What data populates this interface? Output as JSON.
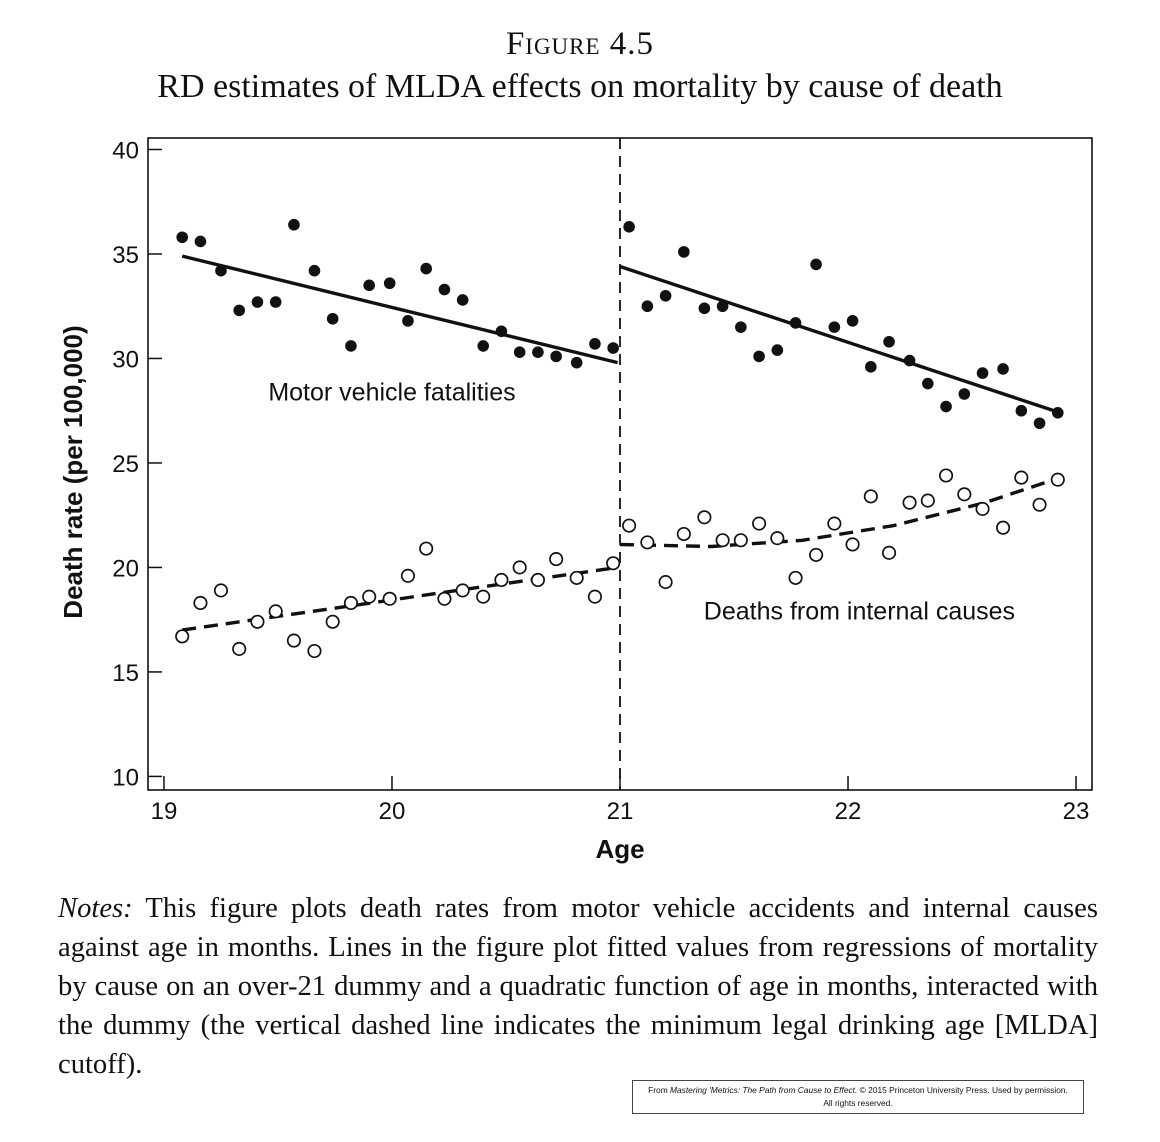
{
  "figure": {
    "label": "Figure 4.5",
    "title": "RD estimates of MLDA effects on mortality by cause of death"
  },
  "notes": {
    "lead": "Notes:",
    "text": "This figure plots death rates from motor vehicle accidents and inter­nal causes against age in months. Lines in the figure plot fitted values from regressions of mortality by cause on an over-21 dummy and a quadratic func­tion of age in months, interacted with the dummy (the vertical dashed line indicates the minimum legal drinking age [MLDA] cutoff)."
  },
  "credit": {
    "prefix": "From",
    "book": "Mastering 'Metrics: The Path from Cause to Effect.",
    "suffix": "© 2015 Princeton University Press. Used by permission.",
    "line2": "All rights reserved."
  },
  "chart_data": {
    "type": "scatter",
    "xlabel": "Age",
    "ylabel": "Death rate (per 100,000)",
    "xlim": [
      18.93,
      23.07
    ],
    "ylim": [
      9.35,
      40.55
    ],
    "xticks": [
      19,
      20,
      21,
      22,
      23
    ],
    "yticks": [
      10,
      15,
      20,
      25,
      30,
      35,
      40
    ],
    "grid": false,
    "cutoff": {
      "x": 21,
      "style": "dashed"
    },
    "annotations": [
      {
        "text": "Motor vehicle fatalities",
        "x": 20.0,
        "y": 28.0
      },
      {
        "text": "Deaths from internal causes",
        "x": 22.05,
        "y": 17.5
      }
    ],
    "series": [
      {
        "marker": "filled-circle",
        "color": "#111111",
        "x": [
          19.08,
          19.16,
          19.25,
          19.33,
          19.41,
          19.49,
          19.57,
          19.66,
          19.74,
          19.82,
          19.9,
          19.99,
          20.07,
          20.15,
          20.23,
          20.31,
          20.4,
          20.48,
          20.56,
          20.64,
          20.72,
          20.81,
          20.89,
          20.97,
          21.04,
          21.12,
          21.2,
          21.28,
          21.37,
          21.45,
          21.53,
          21.61,
          21.69,
          21.77,
          21.86,
          21.94,
          22.02,
          22.1,
          22.18,
          22.27,
          22.35,
          22.43,
          22.51,
          22.59,
          22.68,
          22.76,
          22.84,
          22.92
        ],
        "y": [
          35.8,
          35.6,
          34.2,
          32.3,
          32.7,
          32.7,
          36.4,
          34.2,
          31.9,
          30.6,
          33.5,
          33.6,
          31.8,
          34.3,
          33.3,
          32.8,
          30.6,
          31.3,
          30.3,
          30.3,
          30.1,
          29.8,
          30.7,
          30.5,
          36.3,
          32.5,
          33.0,
          35.1,
          32.4,
          32.5,
          31.5,
          30.1,
          30.4,
          31.7,
          34.5,
          31.5,
          31.8,
          29.6,
          30.8,
          29.9,
          28.8,
          27.7,
          28.3,
          29.3,
          29.5,
          27.5,
          26.9,
          27.4
        ]
      },
      {
        "marker": "open-circle",
        "color": "#111111",
        "x": [
          19.08,
          19.16,
          19.25,
          19.33,
          19.41,
          19.49,
          19.57,
          19.66,
          19.74,
          19.82,
          19.9,
          19.99,
          20.07,
          20.15,
          20.23,
          20.31,
          20.4,
          20.48,
          20.56,
          20.64,
          20.72,
          20.81,
          20.89,
          20.97,
          21.04,
          21.12,
          21.2,
          21.28,
          21.37,
          21.45,
          21.53,
          21.61,
          21.69,
          21.77,
          21.86,
          21.94,
          22.02,
          22.1,
          22.18,
          22.27,
          22.35,
          22.43,
          22.51,
          22.59,
          22.68,
          22.76,
          22.84,
          22.92
        ],
        "y": [
          16.7,
          18.3,
          18.9,
          16.1,
          17.4,
          17.9,
          16.5,
          16.0,
          17.4,
          18.3,
          18.6,
          18.5,
          19.6,
          20.9,
          18.5,
          18.9,
          18.6,
          19.4,
          20.0,
          19.4,
          20.4,
          19.5,
          18.6,
          20.2,
          22.0,
          21.2,
          19.3,
          21.6,
          22.4,
          21.3,
          21.3,
          22.1,
          21.4,
          19.5,
          20.6,
          22.1,
          21.1,
          23.4,
          20.7,
          23.1,
          23.2,
          24.4,
          23.5,
          22.8,
          21.9,
          24.3,
          23.0,
          24.2
        ]
      }
    ],
    "fits": [
      {
        "style": "solid",
        "segments": [
          {
            "x": [
              19.08,
              20.99
            ],
            "y": [
              34.9,
              29.8
            ]
          },
          {
            "x": [
              21.0,
              22.93
            ],
            "y": [
              34.4,
              27.4
            ]
          }
        ]
      },
      {
        "style": "dashed",
        "segments": [
          {
            "x": [
              19.08,
              20.99
            ],
            "y": [
              17.0,
              20.0
            ]
          },
          {
            "x": [
              21.0,
              21.4,
              21.8,
              22.2,
              22.6,
              22.93
            ],
            "y": [
              21.1,
              21.0,
              21.3,
              22.0,
              23.1,
              24.3
            ]
          }
        ]
      }
    ]
  }
}
